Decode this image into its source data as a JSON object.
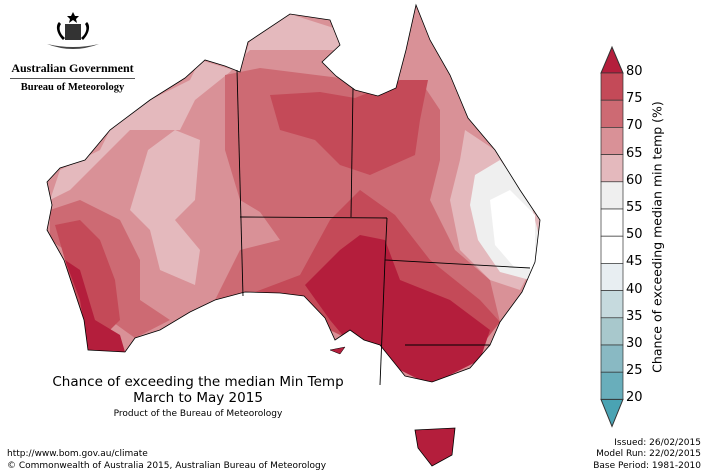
{
  "logo": {
    "government": "Australian Government",
    "bureau": "Bureau of Meteorology"
  },
  "title": {
    "line1": "Chance of exceeding the median Min Temp",
    "line2": "March to May 2015",
    "line3": "Product of the Bureau of Meteorology"
  },
  "footer": {
    "url": "http://www.bom.gov.au/climate",
    "copyright": "© Commonwealth of Australia 2015, Australian Bureau of Meteorology",
    "issued": "Issued: 26/02/2015",
    "model_run": "Model Run: 22/02/2015",
    "base_period": "Base Period: 1981-2010"
  },
  "legend": {
    "title": "Chance of exceeding median min temp (%)",
    "ticks": [
      "80",
      "75",
      "70",
      "65",
      "60",
      "55",
      "50",
      "45",
      "40",
      "35",
      "30",
      "25",
      "20"
    ],
    "colors": {
      "gt80": "#b41e3c",
      "75_80": "#c44a58",
      "70_75": "#cd6a73",
      "65_70": "#d99197",
      "60_65": "#e4b9bd",
      "55_60": "#efefef",
      "50_55": "#ffffff",
      "45_50": "#ffffff",
      "40_45": "#e8eef2",
      "35_40": "#c6dade",
      "30_35": "#a8c8cc",
      "25_30": "#89b9c3",
      "20_25": "#69aebb",
      "lt20": "#4aa3b3"
    }
  }
}
